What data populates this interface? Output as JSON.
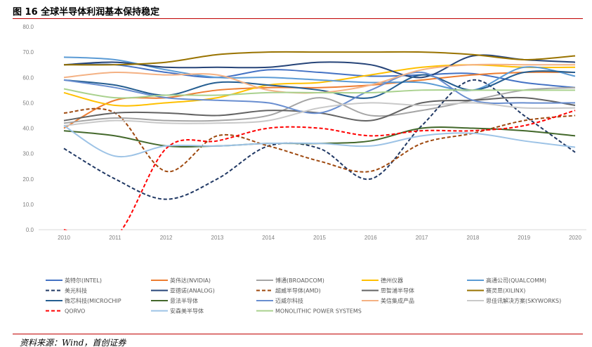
{
  "header": {
    "title": "图 16  全球半导体利润基本保持稳定"
  },
  "footer": {
    "source": "资料来源：Wind，首创证券"
  },
  "chart_data": {
    "type": "line",
    "title": "全球半导体利润基本保持稳定",
    "xlabel": "",
    "ylabel": "",
    "x": [
      "2010",
      "2011",
      "2012",
      "2013",
      "2014",
      "2015",
      "2016",
      "2017",
      "2018",
      "2019",
      "2020"
    ],
    "ylim": [
      0,
      80
    ],
    "yticks": [
      "0.0",
      "10.0",
      "20.0",
      "30.0",
      "40.0",
      "50.0",
      "60.0",
      "70.0",
      "80.0"
    ],
    "legend_position": "bottom",
    "grid": false,
    "series": [
      {
        "name": "英特尔(INTEL)",
        "color": "#4472C4",
        "dash": false,
        "values": [
          65,
          65,
          62,
          60,
          63,
          62,
          60.5,
          61,
          61.5,
          58,
          56
        ]
      },
      {
        "name": "英伟达(NVIDIA)",
        "color": "#ED7D31",
        "dash": false,
        "values": [
          40,
          51,
          52,
          55,
          56,
          56,
          57,
          59,
          61,
          62,
          62
        ]
      },
      {
        "name": "博通(BROADCOM)",
        "color": "#A5A5A5",
        "dash": false,
        "values": [
          42,
          44,
          43,
          43,
          45,
          52,
          45,
          47,
          51,
          55,
          56
        ]
      },
      {
        "name": "德州仪器",
        "color": "#FFC000",
        "dash": false,
        "values": [
          54,
          49,
          50,
          52,
          57,
          58,
          61,
          64,
          65,
          64,
          64
        ]
      },
      {
        "name": "高通公司(QUALCOMM)",
        "color": "#5B9BD5",
        "dash": false,
        "values": [
          68,
          67,
          63,
          60,
          60,
          59,
          58,
          58,
          55,
          64,
          60.5
        ]
      },
      {
        "name": "美光科技",
        "color": "#203864",
        "dash": true,
        "values": [
          32,
          20,
          12,
          20,
          33,
          32,
          20,
          41,
          59,
          45,
          30.5
        ]
      },
      {
        "name": "亚德诺(ANALOG)",
        "color": "#264478",
        "dash": false,
        "values": [
          65,
          66,
          64,
          64,
          64,
          66,
          65,
          60,
          68.5,
          67,
          66
        ]
      },
      {
        "name": "超威半导体(AMD)",
        "color": "#9E480E",
        "dash": true,
        "values": [
          46,
          46,
          23,
          37,
          33,
          27,
          23,
          34,
          38,
          43,
          45
        ]
      },
      {
        "name": "思智浦半导体",
        "color": "#636363",
        "dash": false,
        "values": [
          43,
          46,
          46,
          45,
          47,
          46,
          43,
          50,
          51,
          52,
          49
        ]
      },
      {
        "name": "赛灵思(XILINX)",
        "color": "#997300",
        "dash": false,
        "values": [
          65,
          65,
          66,
          69,
          70,
          70,
          70,
          70,
          69,
          67,
          68.5
        ]
      },
      {
        "name": "微芯科技(MICROCHIP",
        "color": "#255E91",
        "dash": false,
        "values": [
          59,
          57,
          53,
          58,
          57,
          55,
          52,
          61,
          55,
          62,
          62
        ]
      },
      {
        "name": "意法半导体",
        "color": "#43682B",
        "dash": false,
        "values": [
          39,
          37,
          33,
          33,
          34,
          34,
          35,
          40,
          40,
          39,
          37
        ]
      },
      {
        "name": "迈威尔科技",
        "color": "#698ED0",
        "dash": false,
        "values": [
          59,
          56,
          52,
          51,
          50,
          46,
          55,
          62,
          51,
          50,
          50
        ]
      },
      {
        "name": "美信集成产品",
        "color": "#F4B183",
        "dash": false,
        "values": [
          60,
          62,
          61,
          61,
          55,
          54,
          57,
          63,
          65,
          65,
          65
        ]
      },
      {
        "name": "思佳讯解决方案(SKYWORKS)",
        "color": "#C9C9C9",
        "dash": false,
        "values": [
          41,
          43,
          42,
          42,
          43,
          48,
          50,
          49,
          50,
          48,
          48
        ]
      },
      {
        "name": "QORVO",
        "color": "#FF0000",
        "dash": true,
        "values": [
          0,
          -3,
          32,
          35,
          40,
          40,
          37,
          39,
          39,
          41,
          47
        ]
      },
      {
        "name": "安森美半导体",
        "color": "#9DC3E6",
        "dash": false,
        "values": [
          41,
          29,
          33,
          33,
          34,
          34,
          33,
          37,
          38,
          35,
          32.5
        ]
      },
      {
        "name": "MONOLITHIC POWER SYSTEMS",
        "color": "#A9D18E",
        "dash": false,
        "values": [
          55.5,
          52,
          53,
          53,
          54,
          54,
          54,
          55,
          55,
          55,
          55
        ]
      }
    ]
  }
}
